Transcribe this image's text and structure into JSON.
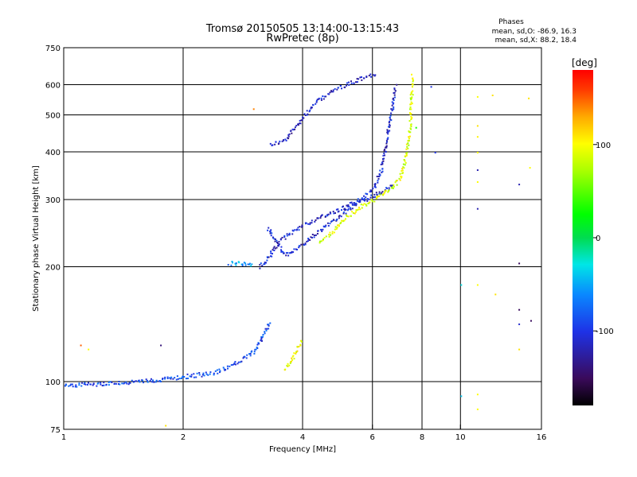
{
  "chart_data": {
    "type": "scatter",
    "title": "Tromsø 20150505 13:14:00-13:15:43",
    "subtitle": "RwPretec (8p)",
    "stats_title": "Phases",
    "stats_o": "mean, sd,O: -86.9, 16.3",
    "stats_x": "mean, sd,X: 88.2, 18.4",
    "xlabel": "Frequency [MHz]",
    "ylabel": "Stationary phase Virtual Height [km]",
    "x_scale": "log",
    "y_scale": "log",
    "xlim": [
      1,
      16
    ],
    "ylim": [
      75,
      750
    ],
    "x_ticks": [
      {
        "value": 1,
        "label": "1"
      },
      {
        "value": 2,
        "label": "2"
      },
      {
        "value": 4,
        "label": "4"
      },
      {
        "value": 6,
        "label": "6"
      },
      {
        "value": 8,
        "label": "8"
      },
      {
        "value": 10,
        "label": "10"
      },
      {
        "value": 16,
        "label": "16"
      }
    ],
    "x_gridlines": [
      2,
      4,
      6,
      8,
      10
    ],
    "y_ticks": [
      {
        "value": 75,
        "label": "75"
      },
      {
        "value": 100,
        "label": "100"
      },
      {
        "value": 200,
        "label": "200"
      },
      {
        "value": 300,
        "label": "300"
      },
      {
        "value": 400,
        "label": "400"
      },
      {
        "value": 500,
        "label": "500"
      },
      {
        "value": 600,
        "label": "600"
      },
      {
        "value": 750,
        "label": "750"
      }
    ],
    "y_gridlines": [
      100,
      200,
      300,
      400,
      500,
      600
    ],
    "grid": true,
    "colorbar": {
      "label": "[deg]",
      "range": [
        -180,
        180
      ],
      "ticks": [
        {
          "value": 100,
          "label": "100"
        },
        {
          "value": 0,
          "label": "0"
        },
        {
          "value": -100,
          "label": "-100"
        }
      ]
    },
    "traces": [
      {
        "phase": -115,
        "points": [
          [
            3.3,
            420
          ],
          [
            3.6,
            430
          ],
          [
            3.9,
            480
          ],
          [
            4.3,
            540
          ],
          [
            4.8,
            585
          ],
          [
            5.3,
            610
          ],
          [
            5.8,
            635
          ],
          [
            6.1,
            640
          ]
        ]
      },
      {
        "phase": -110,
        "points": [
          [
            3.1,
            200
          ],
          [
            3.25,
            210
          ],
          [
            3.5,
            235
          ],
          [
            3.9,
            255
          ],
          [
            4.4,
            270
          ],
          [
            5.0,
            285
          ],
          [
            5.5,
            300
          ],
          [
            6.0,
            320
          ],
          [
            6.3,
            360
          ],
          [
            6.5,
            430
          ],
          [
            6.7,
            520
          ],
          [
            6.85,
            600
          ]
        ]
      },
      {
        "phase": -108,
        "points": [
          [
            3.25,
            255
          ],
          [
            3.4,
            235
          ],
          [
            3.6,
            215
          ],
          [
            4.0,
            230
          ],
          [
            4.5,
            255
          ],
          [
            5.0,
            275
          ],
          [
            5.5,
            295
          ],
          [
            6.1,
            310
          ],
          [
            6.5,
            320
          ],
          [
            6.8,
            330
          ]
        ]
      },
      {
        "phase": -60,
        "points": [
          [
            2.6,
            205
          ],
          [
            2.8,
            205
          ],
          [
            3.0,
            202
          ]
        ]
      },
      {
        "phase": 90,
        "points": [
          [
            4.4,
            235
          ],
          [
            4.7,
            245
          ],
          [
            5.0,
            265
          ],
          [
            5.5,
            285
          ],
          [
            6.0,
            300
          ],
          [
            6.5,
            315
          ],
          [
            7.0,
            340
          ],
          [
            7.3,
            400
          ],
          [
            7.45,
            480
          ],
          [
            7.5,
            560
          ],
          [
            7.55,
            640
          ]
        ]
      },
      {
        "phase": -90,
        "points": [
          [
            1.0,
            98
          ],
          [
            1.2,
            99
          ],
          [
            1.5,
            100
          ],
          [
            1.8,
            102
          ],
          [
            2.1,
            104
          ],
          [
            2.4,
            106
          ],
          [
            2.7,
            112
          ],
          [
            3.0,
            120
          ],
          [
            3.2,
            135
          ],
          [
            3.3,
            145
          ]
        ]
      },
      {
        "phase": 95,
        "points": [
          [
            3.6,
            108
          ],
          [
            3.75,
            115
          ],
          [
            3.9,
            125
          ],
          [
            3.95,
            130
          ]
        ]
      }
    ],
    "scatter_points": [
      {
        "x": 3.0,
        "y": 520,
        "phase": 140
      },
      {
        "x": 1.1,
        "y": 125,
        "phase": 150
      },
      {
        "x": 1.15,
        "y": 122,
        "phase": 100
      },
      {
        "x": 1.75,
        "y": 125,
        "phase": -140
      },
      {
        "x": 8.4,
        "y": 595,
        "phase": -100
      },
      {
        "x": 8.6,
        "y": 400,
        "phase": -100
      },
      {
        "x": 7.7,
        "y": 465,
        "phase": 30
      },
      {
        "x": 10.0,
        "y": 180,
        "phase": -30
      },
      {
        "x": 10.0,
        "y": 92,
        "phase": -40
      },
      {
        "x": 11.0,
        "y": 560,
        "phase": 100
      },
      {
        "x": 11.0,
        "y": 470,
        "phase": 110
      },
      {
        "x": 11.0,
        "y": 440,
        "phase": 105
      },
      {
        "x": 11.0,
        "y": 400,
        "phase": 100
      },
      {
        "x": 11.0,
        "y": 360,
        "phase": -120
      },
      {
        "x": 11.0,
        "y": 335,
        "phase": 100
      },
      {
        "x": 11.0,
        "y": 285,
        "phase": -120
      },
      {
        "x": 11.0,
        "y": 180,
        "phase": 100
      },
      {
        "x": 11.0,
        "y": 93,
        "phase": 100
      },
      {
        "x": 11.0,
        "y": 85,
        "phase": 100
      },
      {
        "x": 12.0,
        "y": 565,
        "phase": 110
      },
      {
        "x": 12.2,
        "y": 170,
        "phase": 110
      },
      {
        "x": 14.0,
        "y": 330,
        "phase": -120
      },
      {
        "x": 14.0,
        "y": 205,
        "phase": -150
      },
      {
        "x": 14.0,
        "y": 155,
        "phase": -150
      },
      {
        "x": 14.0,
        "y": 142,
        "phase": -110
      },
      {
        "x": 14.0,
        "y": 122,
        "phase": 110
      },
      {
        "x": 14.8,
        "y": 555,
        "phase": 110
      },
      {
        "x": 14.9,
        "y": 365,
        "phase": 100
      },
      {
        "x": 15.0,
        "y": 145,
        "phase": -150
      },
      {
        "x": 1.8,
        "y": 77,
        "phase": 110
      }
    ]
  }
}
